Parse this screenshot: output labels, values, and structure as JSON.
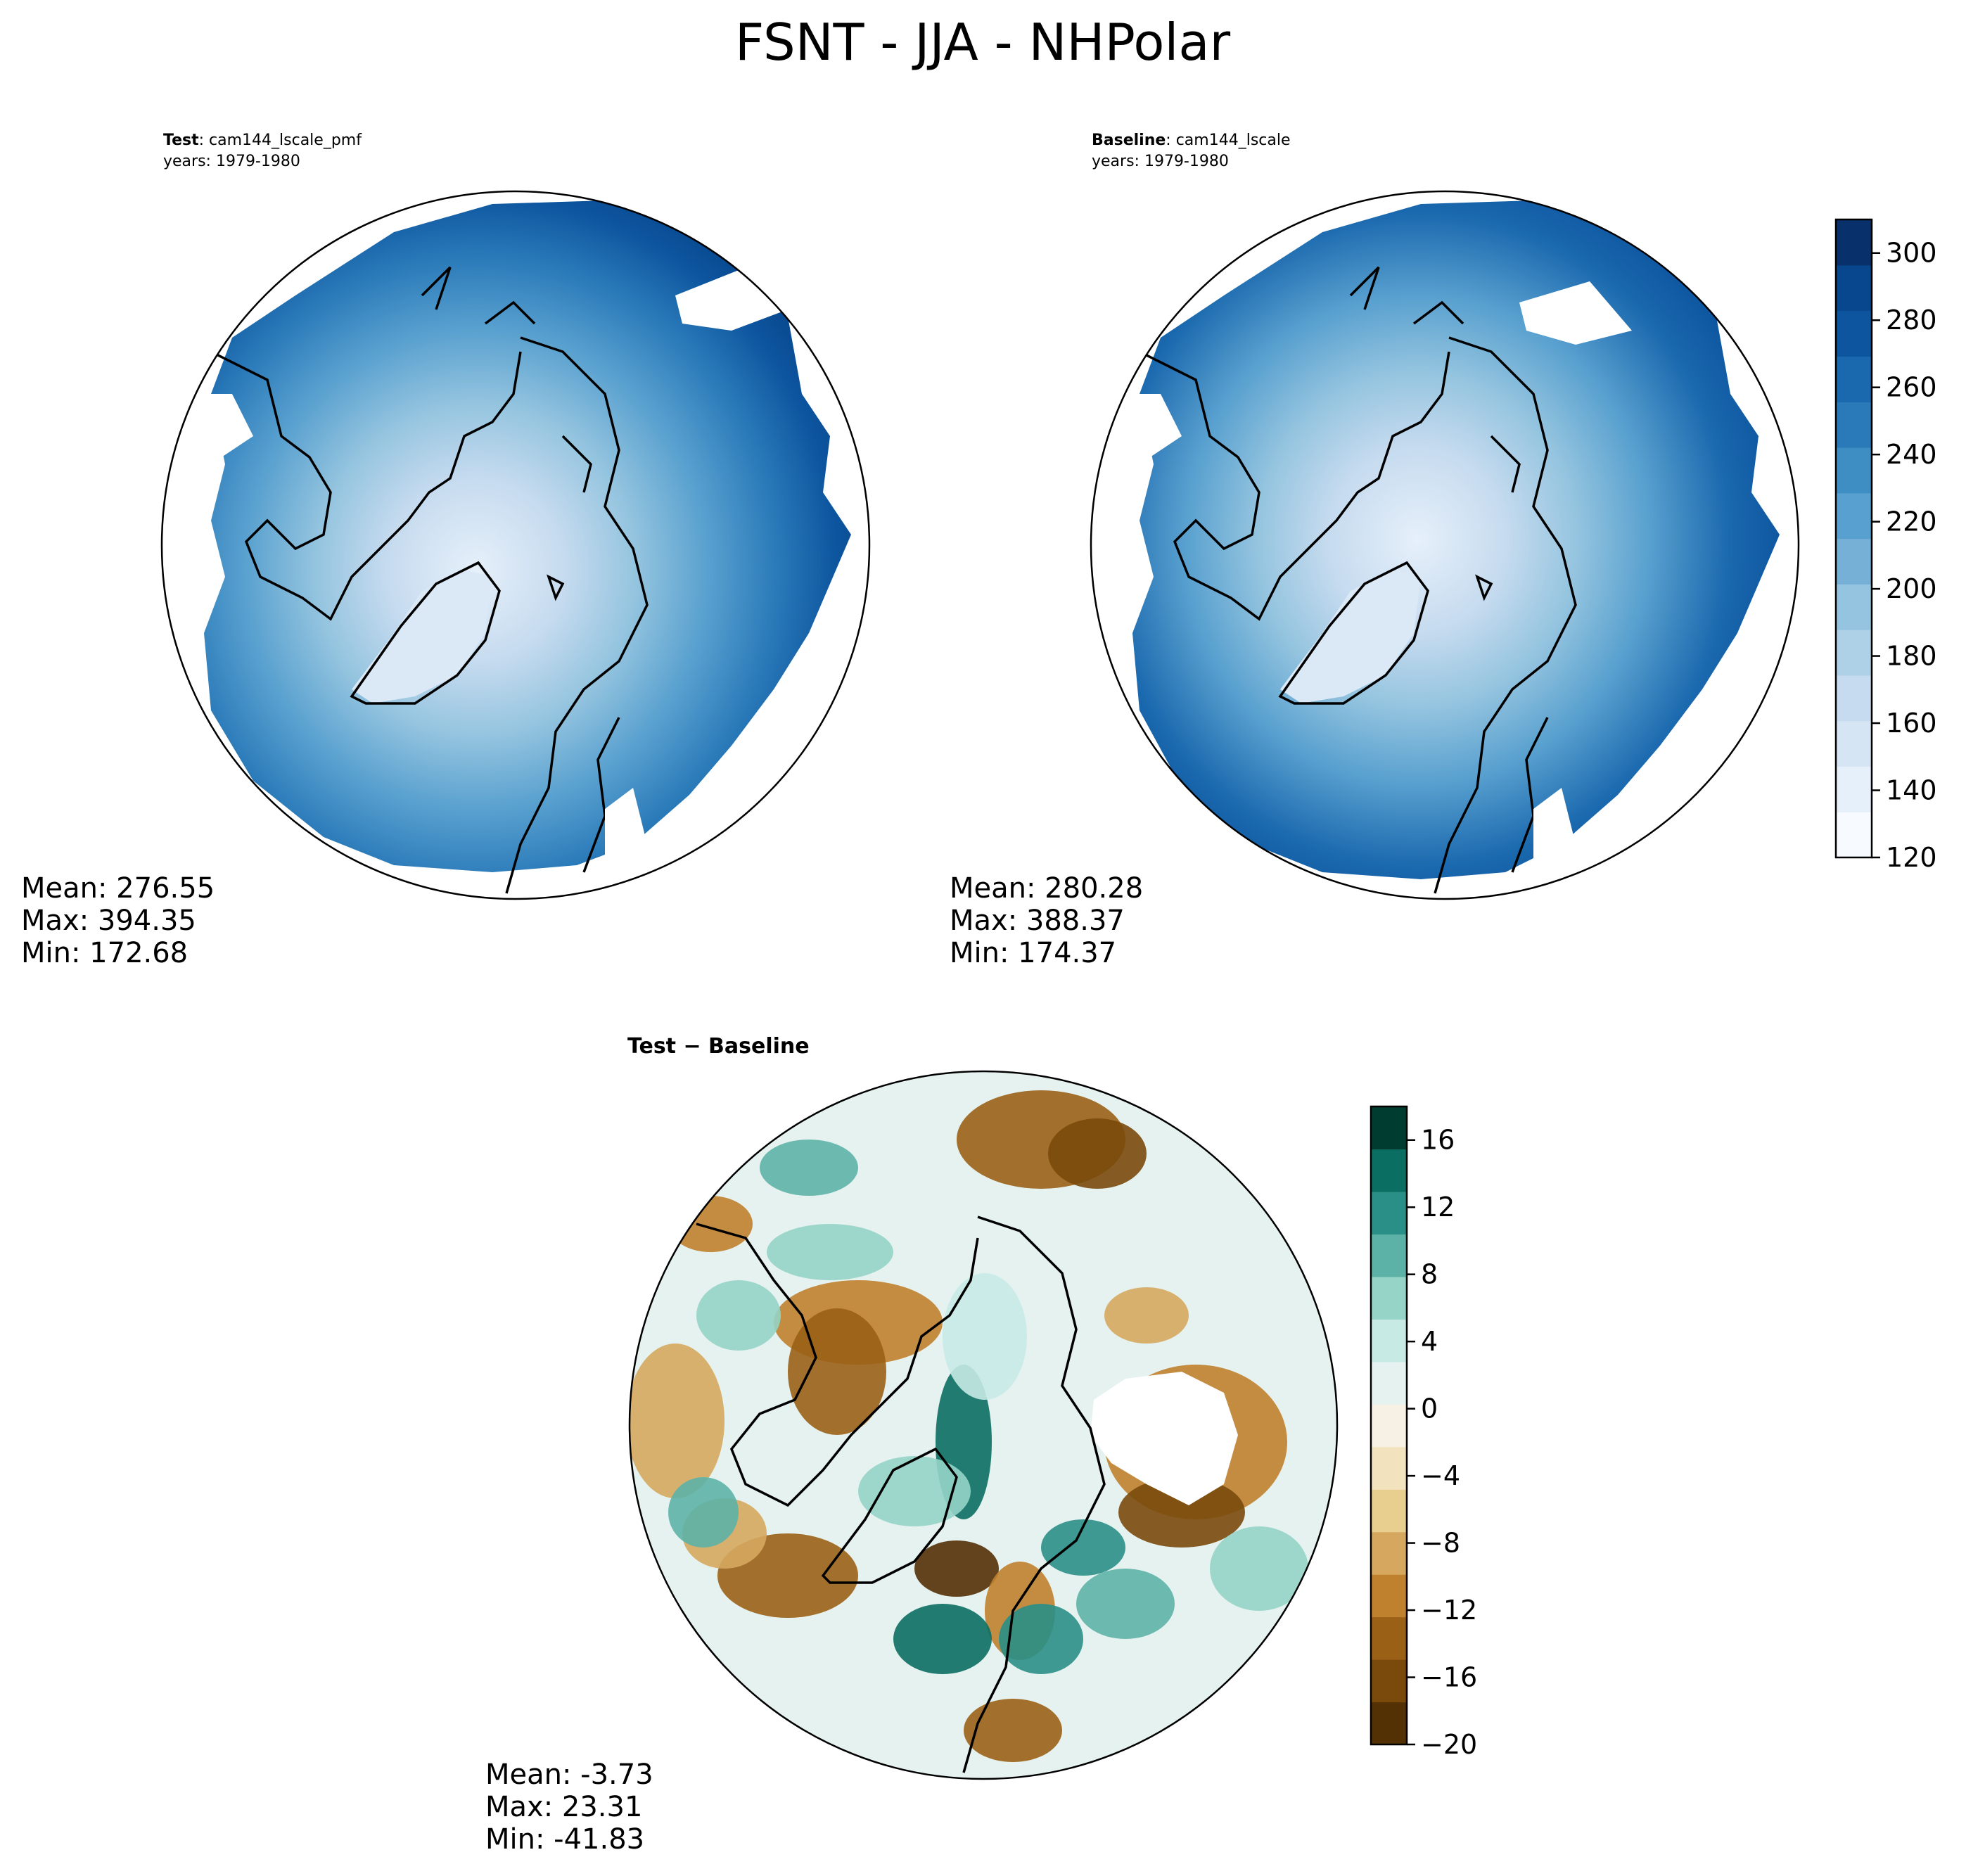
{
  "figure": {
    "title": "FSNT - JJA - NHPolar"
  },
  "panels": {
    "test": {
      "label_bold": "Test",
      "label_rest": ": cam144_lscale_pmf",
      "years": "years: 1979-1980",
      "stats": [
        "Mean: 276.55",
        "Max: 394.35",
        "Min: 172.68"
      ]
    },
    "baseline": {
      "label_bold": "Baseline",
      "label_rest": ": cam144_lscale",
      "years": "years: 1979-1980",
      "stats": [
        "Mean: 280.28",
        "Max: 388.37",
        "Min: 174.37"
      ]
    },
    "diff": {
      "title": "Test − Baseline",
      "stats": [
        "Mean: -3.73",
        "Max: 23.31",
        "Min: -41.83"
      ]
    }
  },
  "colors": {
    "blues": [
      "#f7fbff",
      "#e6f0fa",
      "#d5e5f4",
      "#c6dbef",
      "#afd1e7",
      "#94c4df",
      "#76b0d7",
      "#58a0cf",
      "#3e8ec4",
      "#2a7ab9",
      "#1a68ae",
      "#0d559f",
      "#08478d",
      "#08306b"
    ],
    "brbg": [
      "#543005",
      "#7a4a0c",
      "#9a6016",
      "#bf812d",
      "#d6a85f",
      "#e8cf8f",
      "#f2e2bd",
      "#f6f1e4",
      "#e6f2ef",
      "#c7eae5",
      "#95d4c7",
      "#5db2a7",
      "#2a8f86",
      "#0b6e62",
      "#003c30"
    ],
    "coastline": "#000000"
  },
  "chart_data": [
    {
      "type": "heatmap",
      "projection": "north-polar-stereographic",
      "title": "Test: cam144_lscale_pmf",
      "subtitle": "years: 1979-1980",
      "colorbar": {
        "ticks": [
          120,
          140,
          160,
          180,
          200,
          220,
          240,
          260,
          280,
          300
        ],
        "range": [
          120,
          310
        ]
      },
      "stats": {
        "mean": 276.55,
        "max": 394.35,
        "min": 172.68
      }
    },
    {
      "type": "heatmap",
      "projection": "north-polar-stereographic",
      "title": "Baseline: cam144_lscale",
      "subtitle": "years: 1979-1980",
      "colorbar": {
        "ticks": [
          120,
          140,
          160,
          180,
          200,
          220,
          240,
          260,
          280,
          300
        ],
        "range": [
          120,
          310
        ]
      },
      "stats": {
        "mean": 280.28,
        "max": 388.37,
        "min": 174.37
      }
    },
    {
      "type": "heatmap",
      "projection": "north-polar-stereographic",
      "title": "Test − Baseline",
      "colorbar": {
        "ticks": [
          -20,
          -16,
          -12,
          -8,
          -4,
          0,
          4,
          8,
          12,
          16
        ],
        "ticklabels": [
          "−20",
          "−16",
          "−12",
          "−8",
          "−4",
          "0",
          "4",
          "8",
          "12",
          "16"
        ],
        "range": [
          -20,
          18
        ]
      },
      "stats": {
        "mean": -3.73,
        "max": 23.31,
        "min": -41.83
      }
    }
  ]
}
